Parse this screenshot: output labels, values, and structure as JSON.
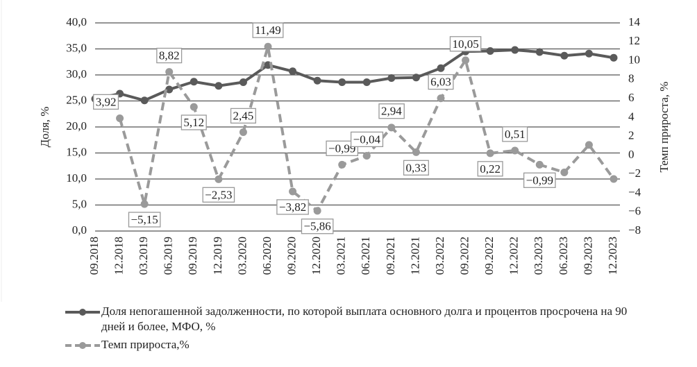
{
  "chart_data": {
    "type": "line",
    "categories": [
      "09.2018",
      "12.2018",
      "03.2019",
      "06.2019",
      "09.2019",
      "12.2019",
      "03.2020",
      "06.2020",
      "09.2020",
      "12.2020",
      "03.2021",
      "06.2021",
      "09.2021",
      "12.2021",
      "03.2022",
      "09.2022",
      "09.2022",
      "12.2022",
      "03.2023",
      "06.2023",
      "09.2023",
      "12.2023"
    ],
    "ylabel": "Доля, %",
    "y2label": "Темп прироста, %",
    "ylim": [
      0,
      40
    ],
    "yticks": [
      {
        "value": 0,
        "label": "0,0"
      },
      {
        "value": 5,
        "label": "5,0"
      },
      {
        "value": 10,
        "label": "10,0"
      },
      {
        "value": 15,
        "label": "15,0"
      },
      {
        "value": 20,
        "label": "20,0"
      },
      {
        "value": 25,
        "label": "25,0"
      },
      {
        "value": 30,
        "label": "30,0"
      },
      {
        "value": 35,
        "label": "35,0"
      },
      {
        "value": 40,
        "label": "40,0"
      }
    ],
    "y2lim": [
      -8,
      14
    ],
    "y2ticks": [
      {
        "value": -8,
        "label": "−8"
      },
      {
        "value": -6,
        "label": "−6"
      },
      {
        "value": -4,
        "label": "−4"
      },
      {
        "value": -2,
        "label": "−2"
      },
      0,
      2,
      4,
      6,
      8,
      10,
      12,
      14
    ],
    "grid": true,
    "series": [
      {
        "name": "Доля непогашенной задолженности, по которой выплата основного долга и процентов просрочена на 90 дней и более, МФО, %",
        "color": "#5a5a5a",
        "dash": false,
        "values": [
          25.4,
          26.4,
          25.1,
          27.2,
          28.7,
          27.9,
          28.6,
          31.9,
          30.7,
          28.9,
          28.6,
          28.6,
          29.4,
          29.5,
          31.3,
          34.5,
          34.6,
          34.8,
          34.4,
          33.7,
          34.1,
          33.3
        ]
      },
      {
        "name": "Темп прироста,%",
        "color": "#9a9a9a",
        "dash": true,
        "axis": "y2",
        "values": [
          null,
          3.92,
          -5.15,
          8.82,
          5.12,
          -2.53,
          2.45,
          11.49,
          -3.82,
          -5.86,
          -0.99,
          -0.04,
          2.94,
          0.33,
          6.03,
          10.05,
          0.22,
          0.51,
          -0.99,
          -1.8,
          1.1,
          -2.5
        ],
        "value_labels": [
          null,
          "3,92",
          "−5,15",
          "8,82",
          "5,12",
          "−2,53",
          "2,45",
          "11,49",
          "−3,82",
          "−5,86",
          "−0,99",
          "−0,04",
          "2,94",
          "0,33",
          "6,03",
          "10,05",
          "0,22",
          "0,51",
          "−0,99",
          null,
          null,
          null
        ]
      }
    ]
  }
}
